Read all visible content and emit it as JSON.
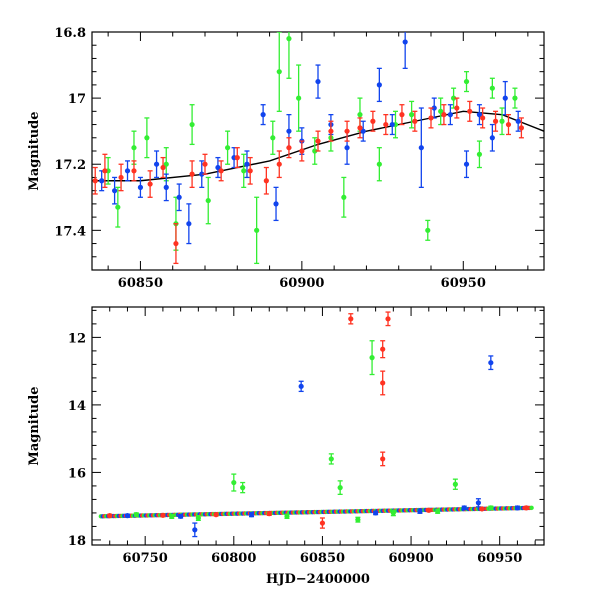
{
  "chart_data": [
    {
      "type": "scatter",
      "panel": "top",
      "title": "",
      "xlabel": "",
      "ylabel": "Magnitude",
      "xlim": [
        60835,
        60975
      ],
      "ylim": [
        17.52,
        16.8
      ],
      "y_inverted": true,
      "xticks": [
        60850,
        60900,
        60950
      ],
      "xtick_labels": [
        "60850",
        "60900",
        "60950"
      ],
      "yticks": [
        16.8,
        17,
        17.2,
        17.4
      ],
      "ytick_labels": [
        "16.8",
        "17",
        "17.2",
        "17.4"
      ],
      "series": [
        {
          "name": "green",
          "color": "#33ee33",
          "points": [
            {
              "x": 60840,
              "y": 17.22,
              "err": 0.04
            },
            {
              "x": 60843,
              "y": 17.33,
              "err": 0.06
            },
            {
              "x": 60848,
              "y": 17.15,
              "err": 0.05
            },
            {
              "x": 60852,
              "y": 17.12,
              "err": 0.06
            },
            {
              "x": 60858,
              "y": 17.2,
              "err": 0.05
            },
            {
              "x": 60861,
              "y": 17.38,
              "err": 0.08
            },
            {
              "x": 60866,
              "y": 17.08,
              "err": 0.06
            },
            {
              "x": 60871,
              "y": 17.31,
              "err": 0.07
            },
            {
              "x": 60877,
              "y": 17.15,
              "err": 0.05
            },
            {
              "x": 60882,
              "y": 17.22,
              "err": 0.05
            },
            {
              "x": 60886,
              "y": 17.4,
              "err": 0.1
            },
            {
              "x": 60891,
              "y": 17.12,
              "err": 0.05
            },
            {
              "x": 60893,
              "y": 16.92,
              "err": 0.12
            },
            {
              "x": 60896,
              "y": 16.82,
              "err": 0.12
            },
            {
              "x": 60899,
              "y": 17.0,
              "err": 0.1
            },
            {
              "x": 60904,
              "y": 17.16,
              "err": 0.04
            },
            {
              "x": 60909,
              "y": 17.12,
              "err": 0.04
            },
            {
              "x": 60913,
              "y": 17.3,
              "err": 0.06
            },
            {
              "x": 60918,
              "y": 17.05,
              "err": 0.05
            },
            {
              "x": 60924,
              "y": 17.2,
              "err": 0.05
            },
            {
              "x": 60929,
              "y": 17.08,
              "err": 0.04
            },
            {
              "x": 60934,
              "y": 17.05,
              "err": 0.04
            },
            {
              "x": 60939,
              "y": 17.4,
              "err": 0.03
            },
            {
              "x": 60943,
              "y": 17.04,
              "err": 0.04
            },
            {
              "x": 60947,
              "y": 17.0,
              "err": 0.03
            },
            {
              "x": 60951,
              "y": 16.95,
              "err": 0.03
            },
            {
              "x": 60955,
              "y": 17.17,
              "err": 0.04
            },
            {
              "x": 60959,
              "y": 16.97,
              "err": 0.03
            },
            {
              "x": 60962,
              "y": 17.07,
              "err": 0.04
            },
            {
              "x": 60966,
              "y": 17.0,
              "err": 0.03
            }
          ]
        },
        {
          "name": "blue",
          "color": "#1144ee",
          "points": [
            {
              "x": 60838,
              "y": 17.25,
              "err": 0.03
            },
            {
              "x": 60842,
              "y": 17.28,
              "err": 0.04
            },
            {
              "x": 60846,
              "y": 17.22,
              "err": 0.03
            },
            {
              "x": 60850,
              "y": 17.27,
              "err": 0.03
            },
            {
              "x": 60855,
              "y": 17.2,
              "err": 0.04
            },
            {
              "x": 60858,
              "y": 17.27,
              "err": 0.04
            },
            {
              "x": 60862,
              "y": 17.3,
              "err": 0.04
            },
            {
              "x": 60865,
              "y": 17.38,
              "err": 0.06
            },
            {
              "x": 60869,
              "y": 17.23,
              "err": 0.04
            },
            {
              "x": 60874,
              "y": 17.21,
              "err": 0.03
            },
            {
              "x": 60879,
              "y": 17.18,
              "err": 0.03
            },
            {
              "x": 60883,
              "y": 17.2,
              "err": 0.04
            },
            {
              "x": 60888,
              "y": 17.05,
              "err": 0.03
            },
            {
              "x": 60892,
              "y": 17.32,
              "err": 0.05
            },
            {
              "x": 60896,
              "y": 17.1,
              "err": 0.05
            },
            {
              "x": 60900,
              "y": 17.13,
              "err": 0.04
            },
            {
              "x": 60905,
              "y": 16.95,
              "err": 0.05
            },
            {
              "x": 60909,
              "y": 17.08,
              "err": 0.03
            },
            {
              "x": 60914,
              "y": 17.15,
              "err": 0.05
            },
            {
              "x": 60919,
              "y": 17.1,
              "err": 0.03
            },
            {
              "x": 60924,
              "y": 16.96,
              "err": 0.05
            },
            {
              "x": 60928,
              "y": 17.08,
              "err": 0.03
            },
            {
              "x": 60932,
              "y": 16.83,
              "err": 0.08
            },
            {
              "x": 60937,
              "y": 17.15,
              "err": 0.12
            },
            {
              "x": 60941,
              "y": 17.03,
              "err": 0.03
            },
            {
              "x": 60946,
              "y": 17.05,
              "err": 0.03
            },
            {
              "x": 60951,
              "y": 17.2,
              "err": 0.04
            },
            {
              "x": 60955,
              "y": 17.05,
              "err": 0.03
            },
            {
              "x": 60959,
              "y": 17.12,
              "err": 0.04
            },
            {
              "x": 60963,
              "y": 17.0,
              "err": 0.05
            },
            {
              "x": 60967,
              "y": 17.07,
              "err": 0.03
            }
          ]
        },
        {
          "name": "red",
          "color": "#ff3322",
          "points": [
            {
              "x": 60836,
              "y": 17.25,
              "err": 0.04
            },
            {
              "x": 60839,
              "y": 17.22,
              "err": 0.05
            },
            {
              "x": 60844,
              "y": 17.24,
              "err": 0.04
            },
            {
              "x": 60848,
              "y": 17.22,
              "err": 0.03
            },
            {
              "x": 60853,
              "y": 17.26,
              "err": 0.04
            },
            {
              "x": 60857,
              "y": 17.21,
              "err": 0.03
            },
            {
              "x": 60861,
              "y": 17.44,
              "err": 0.06
            },
            {
              "x": 60866,
              "y": 17.23,
              "err": 0.04
            },
            {
              "x": 60870,
              "y": 17.2,
              "err": 0.03
            },
            {
              "x": 60875,
              "y": 17.22,
              "err": 0.03
            },
            {
              "x": 60880,
              "y": 17.18,
              "err": 0.03
            },
            {
              "x": 60884,
              "y": 17.22,
              "err": 0.04
            },
            {
              "x": 60889,
              "y": 17.25,
              "err": 0.04
            },
            {
              "x": 60893,
              "y": 17.2,
              "err": 0.04
            },
            {
              "x": 60896,
              "y": 17.15,
              "err": 0.03
            },
            {
              "x": 60900,
              "y": 17.16,
              "err": 0.03
            },
            {
              "x": 60905,
              "y": 17.13,
              "err": 0.03
            },
            {
              "x": 60909,
              "y": 17.1,
              "err": 0.03
            },
            {
              "x": 60914,
              "y": 17.1,
              "err": 0.03
            },
            {
              "x": 60918,
              "y": 17.09,
              "err": 0.03
            },
            {
              "x": 60922,
              "y": 17.07,
              "err": 0.03
            },
            {
              "x": 60926,
              "y": 17.08,
              "err": 0.03
            },
            {
              "x": 60931,
              "y": 17.05,
              "err": 0.03
            },
            {
              "x": 60935,
              "y": 17.07,
              "err": 0.03
            },
            {
              "x": 60940,
              "y": 17.06,
              "err": 0.03
            },
            {
              "x": 60944,
              "y": 17.05,
              "err": 0.03
            },
            {
              "x": 60948,
              "y": 17.03,
              "err": 0.03
            },
            {
              "x": 60952,
              "y": 17.04,
              "err": 0.03
            },
            {
              "x": 60956,
              "y": 17.06,
              "err": 0.03
            },
            {
              "x": 60960,
              "y": 17.07,
              "err": 0.03
            },
            {
              "x": 60964,
              "y": 17.08,
              "err": 0.03
            },
            {
              "x": 60968,
              "y": 17.09,
              "err": 0.03
            }
          ]
        }
      ],
      "model_curve": {
        "name": "model",
        "color": "#000000",
        "x": [
          60835,
          60850,
          60870,
          60890,
          60905,
          60920,
          60935,
          60950,
          60962,
          60975
        ],
        "y": [
          17.25,
          17.25,
          17.23,
          17.19,
          17.14,
          17.1,
          17.07,
          17.04,
          17.05,
          17.1
        ]
      }
    },
    {
      "type": "scatter",
      "panel": "bottom",
      "title": "",
      "xlabel": "HJD−2400000",
      "ylabel": "Magnitude",
      "xlim": [
        60720,
        60975
      ],
      "ylim": [
        18.15,
        11.1
      ],
      "y_inverted": true,
      "xticks": [
        60750,
        60800,
        60850,
        60900,
        60950
      ],
      "xtick_labels": [
        "60750",
        "60800",
        "60850",
        "60900",
        "60950"
      ],
      "yticks": [
        12,
        14,
        16,
        18
      ],
      "ytick_labels": [
        "12",
        "14",
        "16",
        "18"
      ],
      "series": [
        {
          "name": "green",
          "color": "#33ee33",
          "points": [
            {
              "x": 60745,
              "y": 17.25,
              "err": 0.05
            },
            {
              "x": 60765,
              "y": 17.3,
              "err": 0.06
            },
            {
              "x": 60780,
              "y": 17.35,
              "err": 0.07
            },
            {
              "x": 60800,
              "y": 16.3,
              "err": 0.25
            },
            {
              "x": 60805,
              "y": 16.45,
              "err": 0.15
            },
            {
              "x": 60830,
              "y": 17.3,
              "err": 0.06
            },
            {
              "x": 60855,
              "y": 15.6,
              "err": 0.15
            },
            {
              "x": 60860,
              "y": 16.45,
              "err": 0.2
            },
            {
              "x": 60870,
              "y": 17.4,
              "err": 0.07
            },
            {
              "x": 60878,
              "y": 12.6,
              "err": 0.5
            },
            {
              "x": 60890,
              "y": 17.2,
              "err": 0.08
            },
            {
              "x": 60915,
              "y": 17.15,
              "err": 0.06
            },
            {
              "x": 60925,
              "y": 16.35,
              "err": 0.15
            },
            {
              "x": 60945,
              "y": 17.05,
              "err": 0.05
            }
          ]
        },
        {
          "name": "blue",
          "color": "#1144ee",
          "points": [
            {
              "x": 60740,
              "y": 17.28,
              "err": 0.04
            },
            {
              "x": 60770,
              "y": 17.3,
              "err": 0.05
            },
            {
              "x": 60778,
              "y": 17.7,
              "err": 0.2
            },
            {
              "x": 60810,
              "y": 17.25,
              "err": 0.06
            },
            {
              "x": 60838,
              "y": 13.45,
              "err": 0.15
            },
            {
              "x": 60880,
              "y": 17.2,
              "err": 0.05
            },
            {
              "x": 60905,
              "y": 17.15,
              "err": 0.06
            },
            {
              "x": 60930,
              "y": 17.05,
              "err": 0.05
            },
            {
              "x": 60938,
              "y": 16.9,
              "err": 0.12
            },
            {
              "x": 60945,
              "y": 12.75,
              "err": 0.2
            },
            {
              "x": 60960,
              "y": 17.05,
              "err": 0.05
            }
          ]
        },
        {
          "name": "red",
          "color": "#ff3322",
          "points": [
            {
              "x": 60730,
              "y": 17.28,
              "err": 0.04
            },
            {
              "x": 60760,
              "y": 17.27,
              "err": 0.04
            },
            {
              "x": 60790,
              "y": 17.25,
              "err": 0.04
            },
            {
              "x": 60820,
              "y": 17.22,
              "err": 0.05
            },
            {
              "x": 60850,
              "y": 17.5,
              "err": 0.15
            },
            {
              "x": 60866,
              "y": 11.45,
              "err": 0.15
            },
            {
              "x": 60884,
              "y": 12.35,
              "err": 0.25
            },
            {
              "x": 60884,
              "y": 13.35,
              "err": 0.35
            },
            {
              "x": 60884,
              "y": 15.6,
              "err": 0.2
            },
            {
              "x": 60887,
              "y": 11.45,
              "err": 0.2
            },
            {
              "x": 60910,
              "y": 17.12,
              "err": 0.04
            },
            {
              "x": 60940,
              "y": 17.08,
              "err": 0.04
            },
            {
              "x": 60965,
              "y": 17.05,
              "err": 0.04
            }
          ]
        }
      ],
      "baseline": {
        "x_start": 60725,
        "y_start": 17.3,
        "x_end": 60968,
        "y_end": 17.05
      }
    }
  ]
}
